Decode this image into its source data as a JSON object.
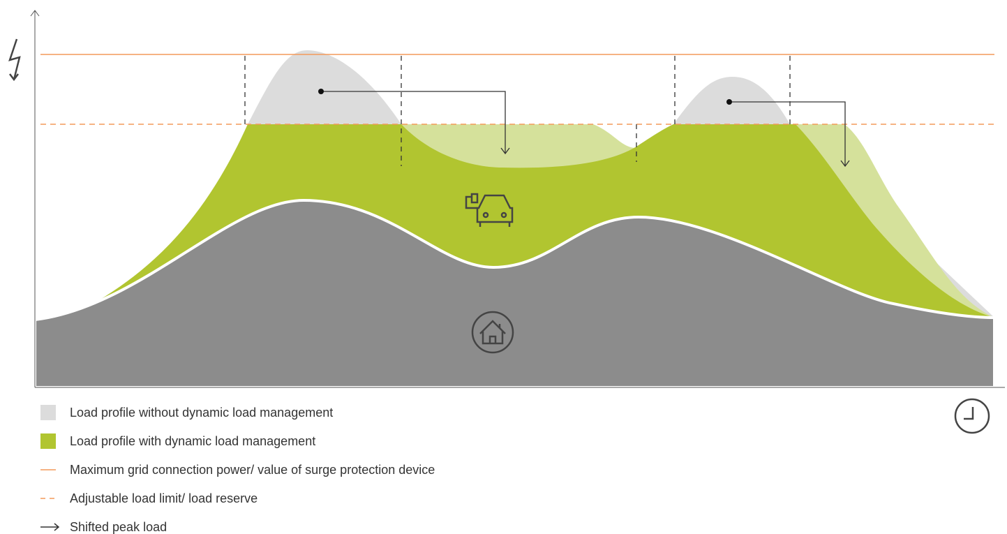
{
  "legend": [
    {
      "label": "Load profile without dynamic load management"
    },
    {
      "label": "Load profile with dynamic load management"
    },
    {
      "label": "Maximum grid connection power/ value of surge protection device"
    },
    {
      "label": "Adjustable load limit/ load reserve"
    },
    {
      "label": "Shifted peak load"
    }
  ]
}
